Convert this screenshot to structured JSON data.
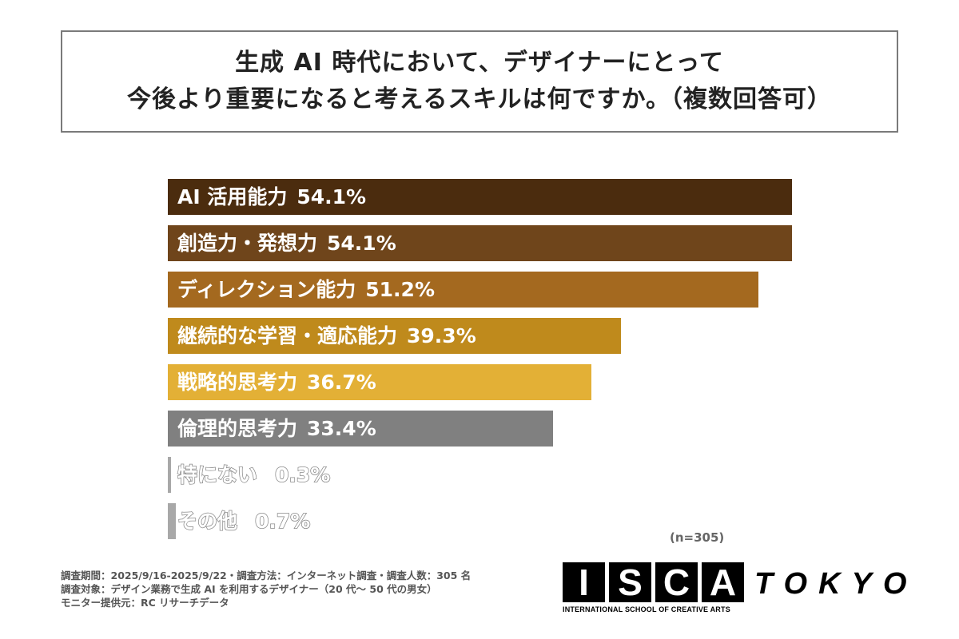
{
  "chart_data": {
    "type": "bar",
    "orientation": "horizontal",
    "title": [
      "生成 AI 時代において、デザイナーにとって",
      "今後より重要になると考えるスキルは何ですか。（複数回答可）"
    ],
    "categories": [
      "AI 活用能力",
      "創造力・発想力",
      "ディレクション能力",
      "継続的な学習・適応能力",
      "戦略的思考力",
      "倫理的思考力",
      "特にない",
      "その他"
    ],
    "values": [
      54.1,
      54.1,
      51.2,
      39.3,
      36.7,
      33.4,
      0.3,
      0.7
    ],
    "value_labels": [
      "54.1%",
      "54.1%",
      "51.2%",
      "39.3%",
      "36.7%",
      "33.4%",
      "0.3%",
      "0.7%"
    ],
    "colors": [
      "#4b2c0e",
      "#6f451b",
      "#a4691f",
      "#bf8a1c",
      "#e3b036",
      "#808080",
      "#a8a8a8",
      "#a8a8a8"
    ],
    "unit": "%",
    "xlim": [
      0,
      54.1
    ],
    "grid": false,
    "note": "(n=305)"
  },
  "footer": [
    "調査期間：2025/9/16-2025/9/22・調査方法：インターネット調査・調査人数：305 名",
    "調査対象：デザイン業務で生成 AI を利用するデザイナー（20 代～ 50 代の男女）",
    "モニター提供元：RC リサーチデータ"
  ],
  "logo": {
    "letters": [
      "I",
      "S",
      "C",
      "A"
    ],
    "tokyo": "TOKYO",
    "subtitle": "INTERNATIONAL SCHOOL OF CREATIVE ARTS"
  }
}
